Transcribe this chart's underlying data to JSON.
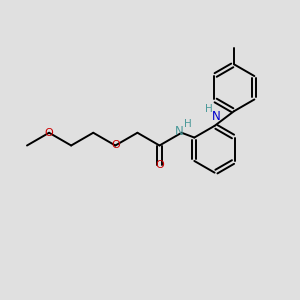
{
  "background_color": "#e0e0e0",
  "bond_color": "#000000",
  "oxygen_color": "#cc0000",
  "nitrogen_color": "#0000cc",
  "nitrogen_h_color": "#4a9999",
  "figsize": [
    3.0,
    3.0
  ],
  "dpi": 100,
  "xlim": [
    0,
    10
  ],
  "ylim": [
    0,
    10
  ]
}
